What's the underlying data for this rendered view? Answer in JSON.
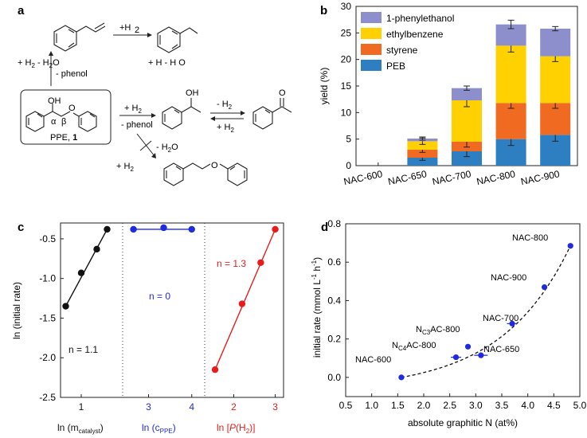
{
  "panels": {
    "a": "a",
    "b": "b",
    "c": "c",
    "d": "d"
  },
  "scheme": {
    "left_upper": [
      "+ H",
      "2",
      " - H",
      "2",
      "O"
    ],
    "left_phenol": "- phenol",
    "top_arrow": "+H",
    "top_arrow_sub": "2",
    "top_right": "+ H  - H O",
    "ppe_label": "PPE, ",
    "ppe_num": "1",
    "alpha": "α",
    "beta": "β",
    "oh1": "OH",
    "o1": "O",
    "oh2": "OH",
    "o_ketone": "O",
    "o_peb": "O",
    "mid_h2": "+ H",
    "mid_phenol": "- phenol",
    "right_minus_h2": "- H",
    "right_plus_h2": "+ H",
    "bottom_minus_h2o": "- H O",
    "bottom_plus_h2": "+ H"
  },
  "chart_data": [
    {
      "panel": "b",
      "type": "bar",
      "stacked": true,
      "categories": [
        "NAC-600",
        "NAC-650",
        "NAC-700",
        "NAC-800",
        "NAC-900"
      ],
      "series": [
        {
          "name": "PEB",
          "color": "#2e7fc2",
          "values": [
            0,
            1.5,
            2.7,
            5.0,
            5.8
          ],
          "err": [
            0,
            0.5,
            1.0,
            1.2,
            1.2
          ]
        },
        {
          "name": "styrene",
          "color": "#f06a22",
          "values": [
            0,
            1.5,
            1.8,
            6.8,
            6.0
          ],
          "err": [
            0,
            0.5,
            1.0,
            1.0,
            1.0
          ]
        },
        {
          "name": "ethylbenzene",
          "color": "#ffd100",
          "values": [
            0,
            1.6,
            7.8,
            10.8,
            8.8
          ],
          "err": [
            0,
            0.6,
            1.2,
            1.2,
            1.0
          ]
        },
        {
          "name": "1-phenylethanol",
          "color": "#8d8fcc",
          "values": [
            0,
            0.5,
            2.3,
            4.0,
            5.2
          ],
          "err": [
            0,
            0.3,
            0.4,
            0.8,
            0.4
          ]
        }
      ],
      "ylabel": "yield (%)",
      "ylim": [
        0,
        30
      ],
      "yticks": [
        0,
        5,
        10,
        15,
        20,
        25,
        30
      ],
      "legend": "top-left"
    },
    {
      "panel": "c",
      "type": "scatter",
      "ylabel": "ln (initial rate)",
      "ylim": [
        -2.5,
        -0.3
      ],
      "yticks": [
        "-0.5",
        "-1.0",
        "-1.5",
        "-2.0",
        "-2.5"
      ],
      "subpanels": [
        {
          "color": "#111111",
          "xlabel": "ln (m",
          "xlabel_sub": "catalyst",
          "xlabel_end": ")",
          "xticks": [
            "1"
          ],
          "xtick_values": [
            1
          ],
          "xlim": [
            0.6,
            1.8
          ],
          "points": [
            [
              0.7,
              -1.35
            ],
            [
              1.0,
              -0.93
            ],
            [
              1.3,
              -0.63
            ],
            [
              1.5,
              -0.38
            ]
          ],
          "annotation": "n = 1.1"
        },
        {
          "color": "#1f2be0",
          "xlabel": "ln (c",
          "xlabel_sub": "PPE",
          "xlabel_end": ")",
          "xticks": [
            "3",
            "4"
          ],
          "xtick_values": [
            3,
            4
          ],
          "xlim": [
            2.4,
            4.3
          ],
          "points": [
            [
              2.65,
              -0.38
            ],
            [
              3.35,
              -0.36
            ],
            [
              4.0,
              -0.38
            ]
          ],
          "annotation": "n = 0"
        },
        {
          "color": "#e81c1c",
          "xlabel": "ln [",
          "xlabel_it": "P",
          "xlabel_mid": "(H",
          "xlabel_sub": "2",
          "xlabel_end": ")]",
          "xticks": [
            "2",
            "3"
          ],
          "xtick_values": [
            2,
            3
          ],
          "xlim": [
            1.3,
            3.2
          ],
          "points": [
            [
              1.55,
              -2.15
            ],
            [
              2.2,
              -1.32
            ],
            [
              2.65,
              -0.8
            ],
            [
              3.0,
              -0.38
            ]
          ],
          "annotation": "n = 1.3"
        }
      ]
    },
    {
      "panel": "d",
      "type": "scatter",
      "xlabel": "absolute graphitic N (at%)",
      "ylabel": "initial rate (mmol L",
      "ylabel_sup1": "-1",
      "ylabel_mid": " h",
      "ylabel_sup2": "-1",
      "ylabel_end": ")",
      "xlim": [
        0.5,
        5.0
      ],
      "ylim": [
        -0.1,
        0.8
      ],
      "xticks": [
        "0.5",
        "1.0",
        "1.5",
        "2.0",
        "2.5",
        "3.0",
        "3.5",
        "4.0",
        "4.5",
        "5.0"
      ],
      "yticks": [
        "0.0",
        "0.2",
        "0.4",
        "0.6",
        "0.8"
      ],
      "points": [
        {
          "label": "NAC-600",
          "x": 1.57,
          "y": 0.0,
          "xerr": 0.05
        },
        {
          "label": "NAC-650",
          "x": 3.1,
          "y": 0.115,
          "xerr": 0.13
        },
        {
          "label": "C4",
          "x": 2.62,
          "y": 0.105,
          "xerr": 0.1
        },
        {
          "label": "C3",
          "x": 2.85,
          "y": 0.16,
          "xerr": 0.0
        },
        {
          "label": "NAC-700",
          "x": 3.7,
          "y": 0.28,
          "xerr": 0.1
        },
        {
          "label": "NAC-900",
          "x": 4.32,
          "y": 0.47,
          "xerr": 0.05
        },
        {
          "label": "NAC-800",
          "x": 4.82,
          "y": 0.685,
          "xerr": 0.05
        }
      ],
      "fit": "exponential-dashed",
      "labels": {
        "nac600": "NAC-600",
        "nac650": "NAC-650",
        "nac700": "NAC-700",
        "nac800": "NAC-800",
        "nac900": "NAC-900",
        "n3_pre": "N",
        "n3_sub": "C3",
        "n3_post": "AC-800",
        "n4_pre": "N",
        "n4_sub": "C4",
        "n4_post": "AC-800"
      }
    }
  ]
}
